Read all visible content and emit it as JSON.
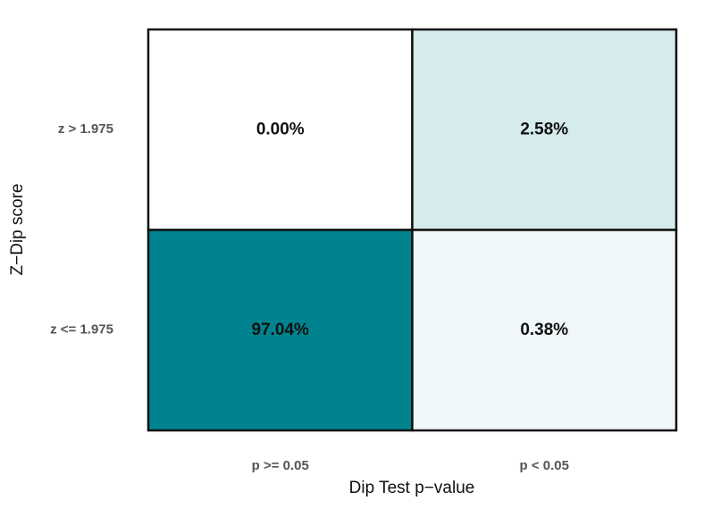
{
  "chart_data": {
    "type": "heatmap",
    "x_label": "Dip Test p−value",
    "y_label": "Z−Dip score",
    "x_categories": [
      "p >= 0.05",
      "p < 0.05"
    ],
    "y_categories": [
      "z > 1.975",
      "z <= 1.975"
    ],
    "values": [
      [
        0.0,
        2.58
      ],
      [
        97.04,
        0.38
      ]
    ],
    "value_labels": [
      [
        "0.00%",
        "2.58%"
      ],
      [
        "97.04%",
        "0.38%"
      ]
    ],
    "low_color": "#ffffff",
    "high_color": "#00838f",
    "color_scale": "sqrt"
  }
}
